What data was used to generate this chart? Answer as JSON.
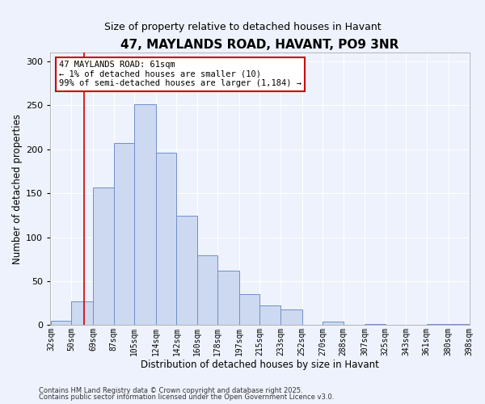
{
  "title": "47, MAYLANDS ROAD, HAVANT, PO9 3NR",
  "subtitle": "Size of property relative to detached houses in Havant",
  "xlabel": "Distribution of detached houses by size in Havant",
  "ylabel": "Number of detached properties",
  "bar_color": "#ccd9f0",
  "bar_edge_color": "#7090c8",
  "background_color": "#eef2fc",
  "grid_color": "#ffffff",
  "annotation_box_color": "#cc0000",
  "annotation_text": "47 MAYLANDS ROAD: 61sqm\n← 1% of detached houses are smaller (10)\n99% of semi-detached houses are larger (1,184) →",
  "vline_x": 61,
  "vline_color": "#cc0000",
  "bin_edges": [
    32,
    50,
    69,
    87,
    105,
    124,
    142,
    160,
    178,
    197,
    215,
    233,
    252,
    270,
    288,
    307,
    325,
    343,
    361,
    380,
    398
  ],
  "bin_labels": [
    "32sqm",
    "50sqm",
    "69sqm",
    "87sqm",
    "105sqm",
    "124sqm",
    "142sqm",
    "160sqm",
    "178sqm",
    "197sqm",
    "215sqm",
    "233sqm",
    "252sqm",
    "270sqm",
    "288sqm",
    "307sqm",
    "325sqm",
    "343sqm",
    "361sqm",
    "380sqm",
    "398sqm"
  ],
  "counts": [
    5,
    27,
    157,
    207,
    251,
    196,
    124,
    79,
    62,
    35,
    22,
    18,
    0,
    4,
    0,
    1,
    0,
    0,
    1,
    1
  ],
  "ylim": [
    0,
    310
  ],
  "yticks": [
    0,
    50,
    100,
    150,
    200,
    250,
    300
  ],
  "footer1": "Contains HM Land Registry data © Crown copyright and database right 2025.",
  "footer2": "Contains public sector information licensed under the Open Government Licence v3.0."
}
